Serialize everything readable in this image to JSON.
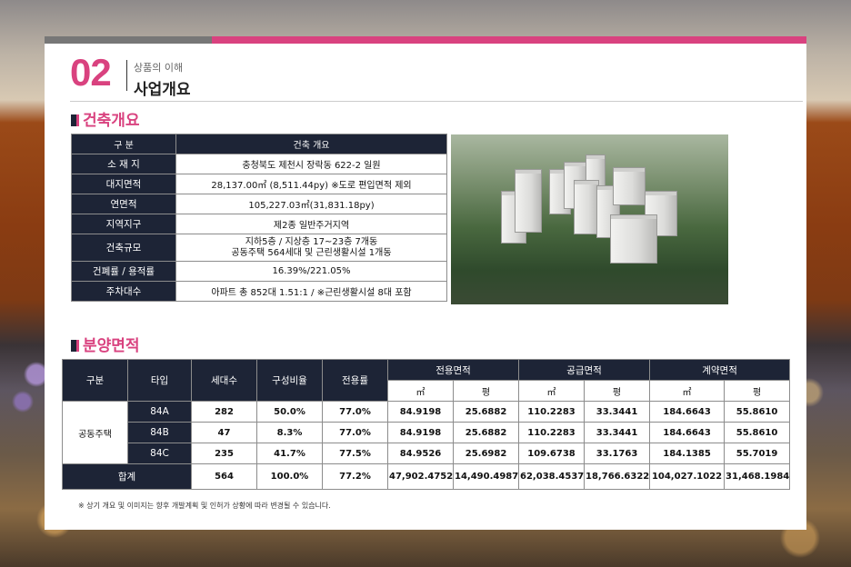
{
  "header": {
    "number": "02",
    "subtitle": "상품의 이해",
    "title": "사업개요"
  },
  "construction": {
    "heading": "건축개요",
    "header_row": {
      "label": "구 분",
      "value": "건축 개요"
    },
    "rows": [
      {
        "label": "소 재 지",
        "value": "충청북도 제천시 장락동 622-2 일원"
      },
      {
        "label": "대지면적",
        "value": "28,137.00㎡ (8,511.44py) ※도로 편입면적 제외"
      },
      {
        "label": "연면적",
        "value": "105,227.03㎡(31,831.18py)"
      },
      {
        "label": "지역지구",
        "value": "제2종 일반주거지역"
      },
      {
        "label": "건축규모",
        "value": "지하5층 / 지상층 17~23층 7개동",
        "value2": "공동주택 564세대 및 근린생활시설 1개동"
      },
      {
        "label": "건폐률 / 용적률",
        "value": "16.39%/221.05%"
      },
      {
        "label": "주차대수",
        "value": "아파트 총 852대 1.51:1 / ※근린생활시설 8대 포함"
      }
    ]
  },
  "sales": {
    "heading": "분양면적",
    "headers": {
      "category": "구분",
      "type": "타입",
      "units": "세대수",
      "ratio": "구성비율",
      "efficiency": "전용률",
      "exclusive": "전용면적",
      "supply": "공급면적",
      "contract": "계약면적",
      "sqm": "㎡",
      "py": "평"
    },
    "category_label": "공동주택",
    "rows": [
      {
        "type": "84A",
        "units": "282",
        "ratio": "50.0%",
        "eff": "77.0%",
        "ex_m": "84.9198",
        "ex_p": "25.6882",
        "su_m": "110.2283",
        "su_p": "33.3441",
        "co_m": "184.6643",
        "co_p": "55.8610"
      },
      {
        "type": "84B",
        "units": "47",
        "ratio": "8.3%",
        "eff": "77.0%",
        "ex_m": "84.9198",
        "ex_p": "25.6882",
        "su_m": "110.2283",
        "su_p": "33.3441",
        "co_m": "184.6643",
        "co_p": "55.8610"
      },
      {
        "type": "84C",
        "units": "235",
        "ratio": "41.7%",
        "eff": "77.5%",
        "ex_m": "84.9526",
        "ex_p": "25.6982",
        "su_m": "109.6738",
        "su_p": "33.1763",
        "co_m": "184.1385",
        "co_p": "55.7019"
      }
    ],
    "total": {
      "label": "합계",
      "units": "564",
      "ratio": "100.0%",
      "eff": "77.2%",
      "ex_m": "47,902.4752",
      "ex_p": "14,490.4987",
      "su_m": "62,038.4537",
      "su_p": "18,766.6322",
      "co_m": "104,027.1022",
      "co_p": "31,468.1984"
    }
  },
  "note": "※ 상기 개요 및 이미지는 향후 개발계획 및 인허가 상황에 따라 변경될 수 있습니다."
}
